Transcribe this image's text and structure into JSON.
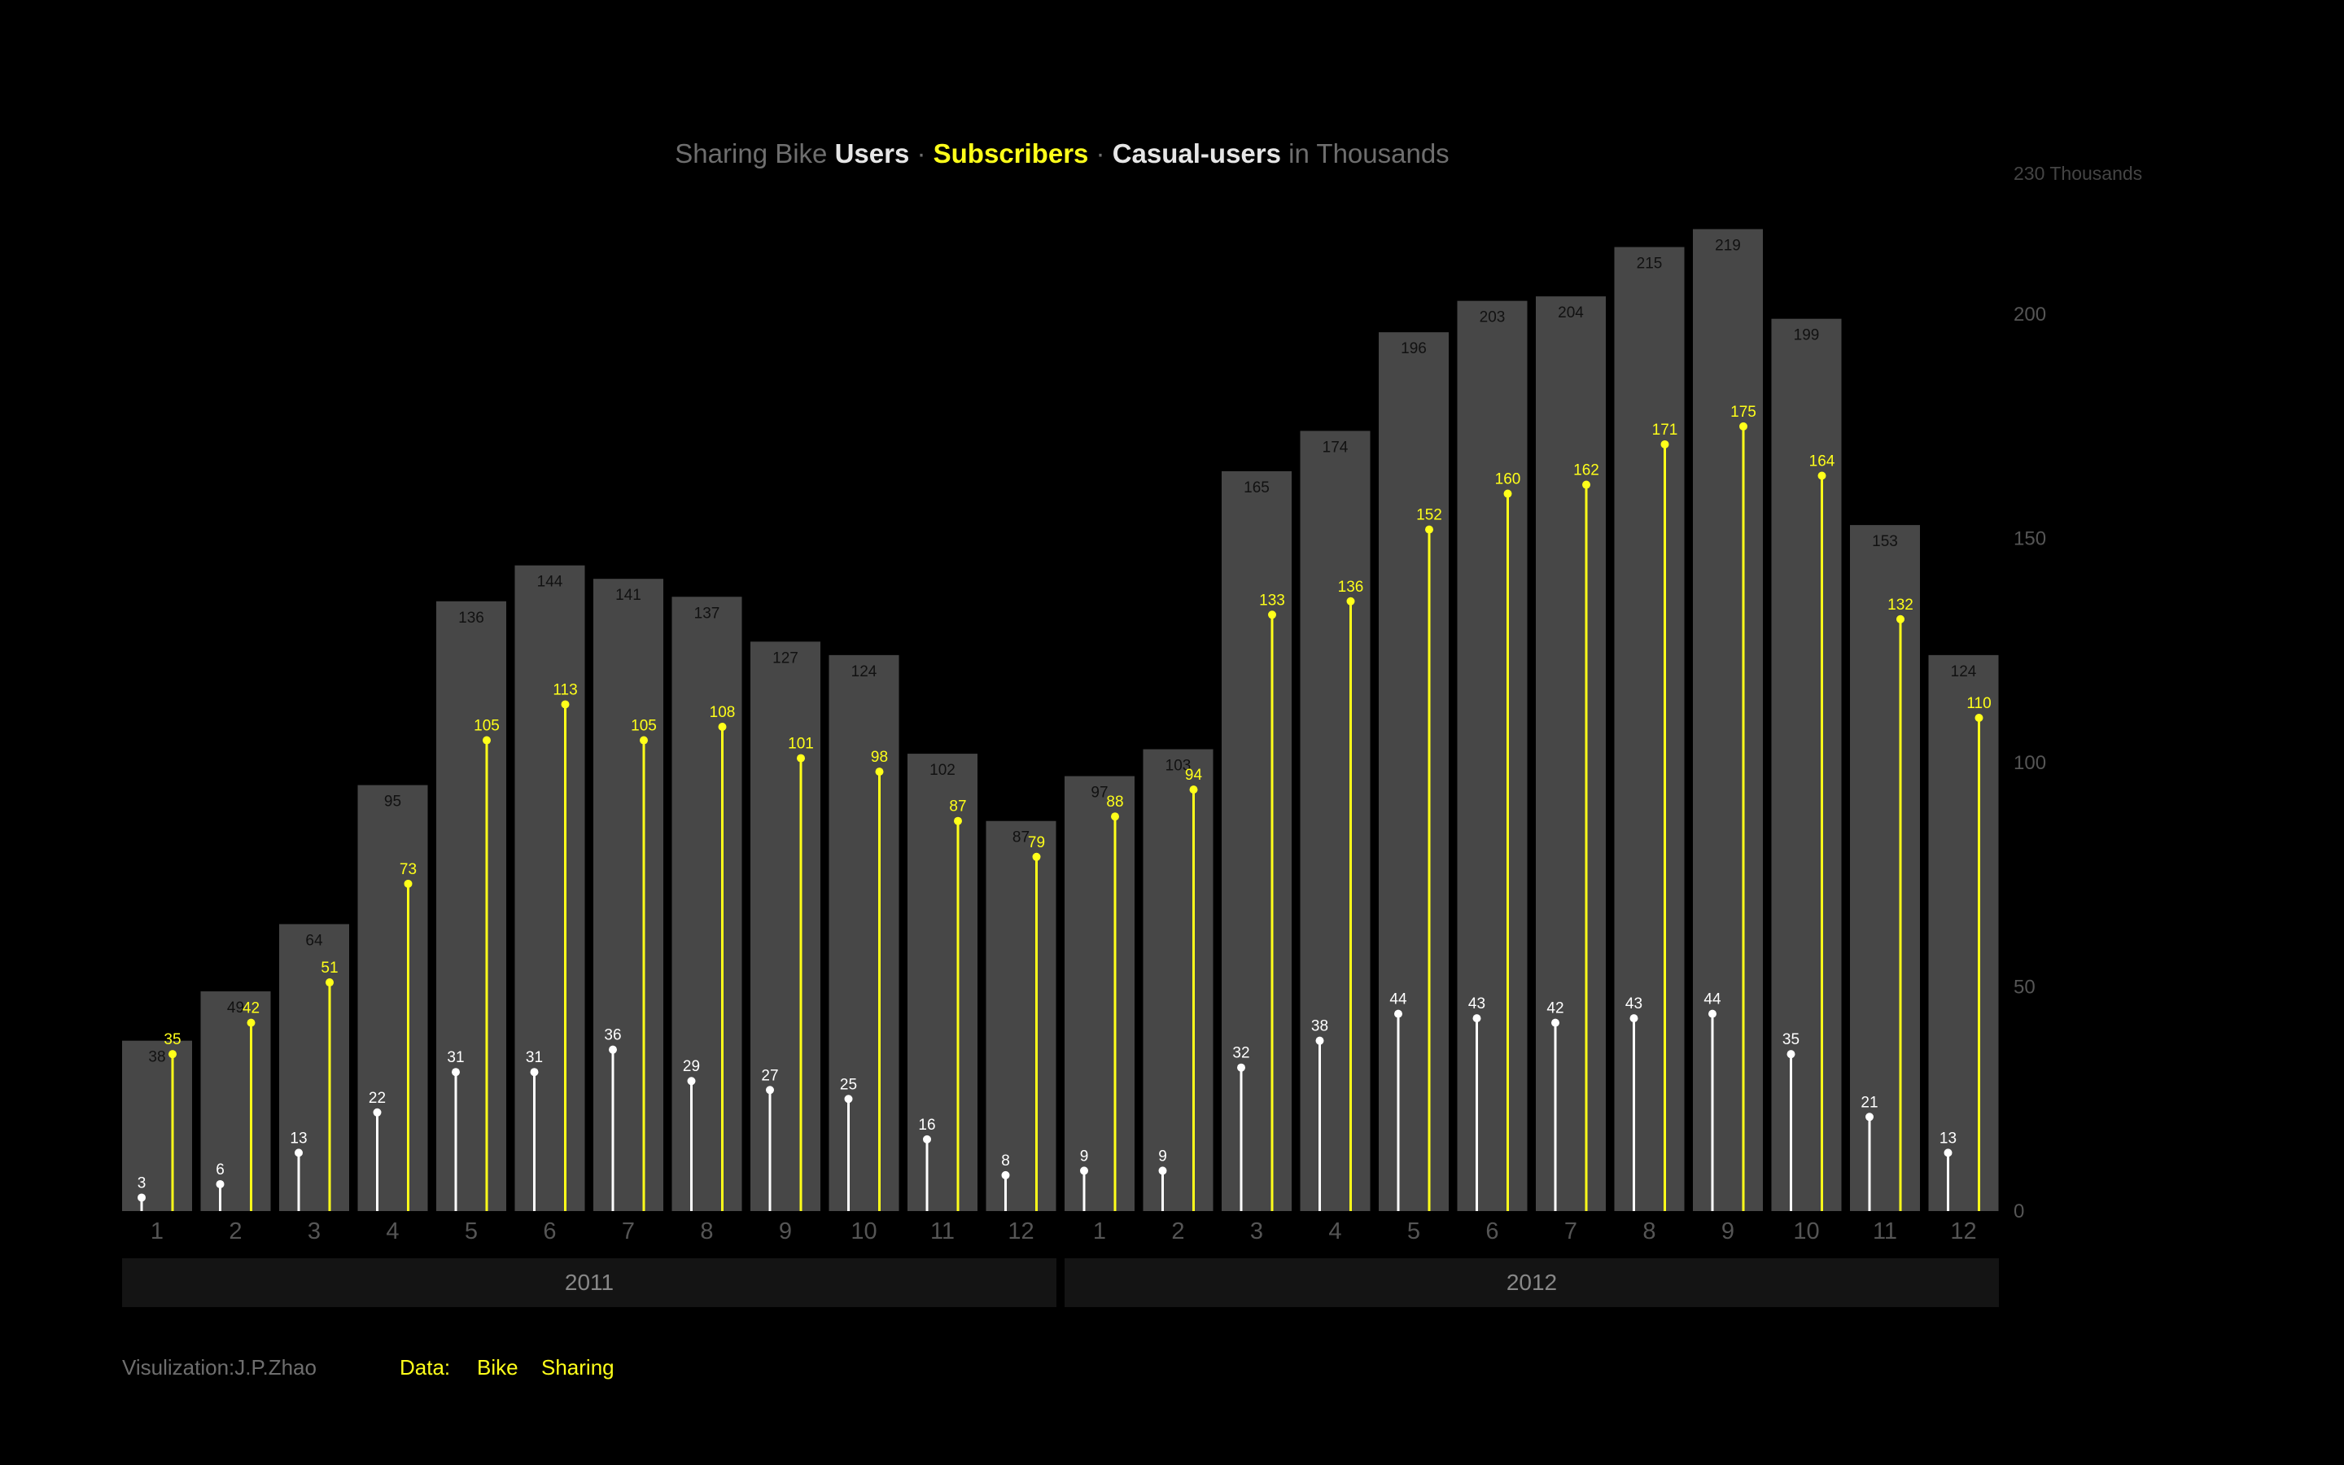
{
  "title": {
    "part1": "Sharing Bike ",
    "users": "Users",
    "sep1": " · ",
    "subscribers": "Subscribers",
    "sep2": " · ",
    "casual": "Casual-users",
    "part_end": " in Thousands"
  },
  "footer": {
    "credit": "Visulization:J.P.Zhao",
    "data_label": "Data:",
    "link1": "Bike",
    "link2": "Sharing"
  },
  "colors": {
    "background": "#000000",
    "bar": "#474747",
    "subscribers": "#ffff1a",
    "casual": "#ffffff",
    "axis_text": "#555555",
    "bar_label": "#111111",
    "year_band": "#141414"
  },
  "chart_data": {
    "type": "bar",
    "categories": [
      "1",
      "2",
      "3",
      "4",
      "5",
      "6",
      "7",
      "8",
      "9",
      "10",
      "11",
      "12",
      "1",
      "2",
      "3",
      "4",
      "5",
      "6",
      "7",
      "8",
      "9",
      "10",
      "11",
      "12"
    ],
    "groups": [
      {
        "label": "2011",
        "months": 12
      },
      {
        "label": "2012",
        "months": 12
      }
    ],
    "series": [
      {
        "name": "Users",
        "style": "bar",
        "values": [
          38,
          49,
          64,
          95,
          136,
          144,
          141,
          137,
          127,
          124,
          102,
          87,
          97,
          103,
          165,
          174,
          196,
          203,
          204,
          215,
          219,
          199,
          153,
          124
        ]
      },
      {
        "name": "Subscribers",
        "style": "lollipop",
        "values": [
          35,
          42,
          51,
          73,
          105,
          113,
          105,
          108,
          101,
          98,
          87,
          79,
          88,
          94,
          133,
          136,
          152,
          160,
          162,
          171,
          175,
          164,
          132,
          110
        ]
      },
      {
        "name": "Casual-users",
        "style": "lollipop",
        "values": [
          3,
          6,
          13,
          22,
          31,
          31,
          36,
          29,
          27,
          25,
          16,
          8,
          9,
          9,
          32,
          38,
          44,
          43,
          42,
          43,
          44,
          35,
          21,
          13
        ]
      }
    ],
    "ylim": [
      0,
      230
    ],
    "yticks": [
      "0",
      "50",
      "100",
      "150",
      "200"
    ],
    "ytop_label": "230 Thousands",
    "grid": false
  }
}
